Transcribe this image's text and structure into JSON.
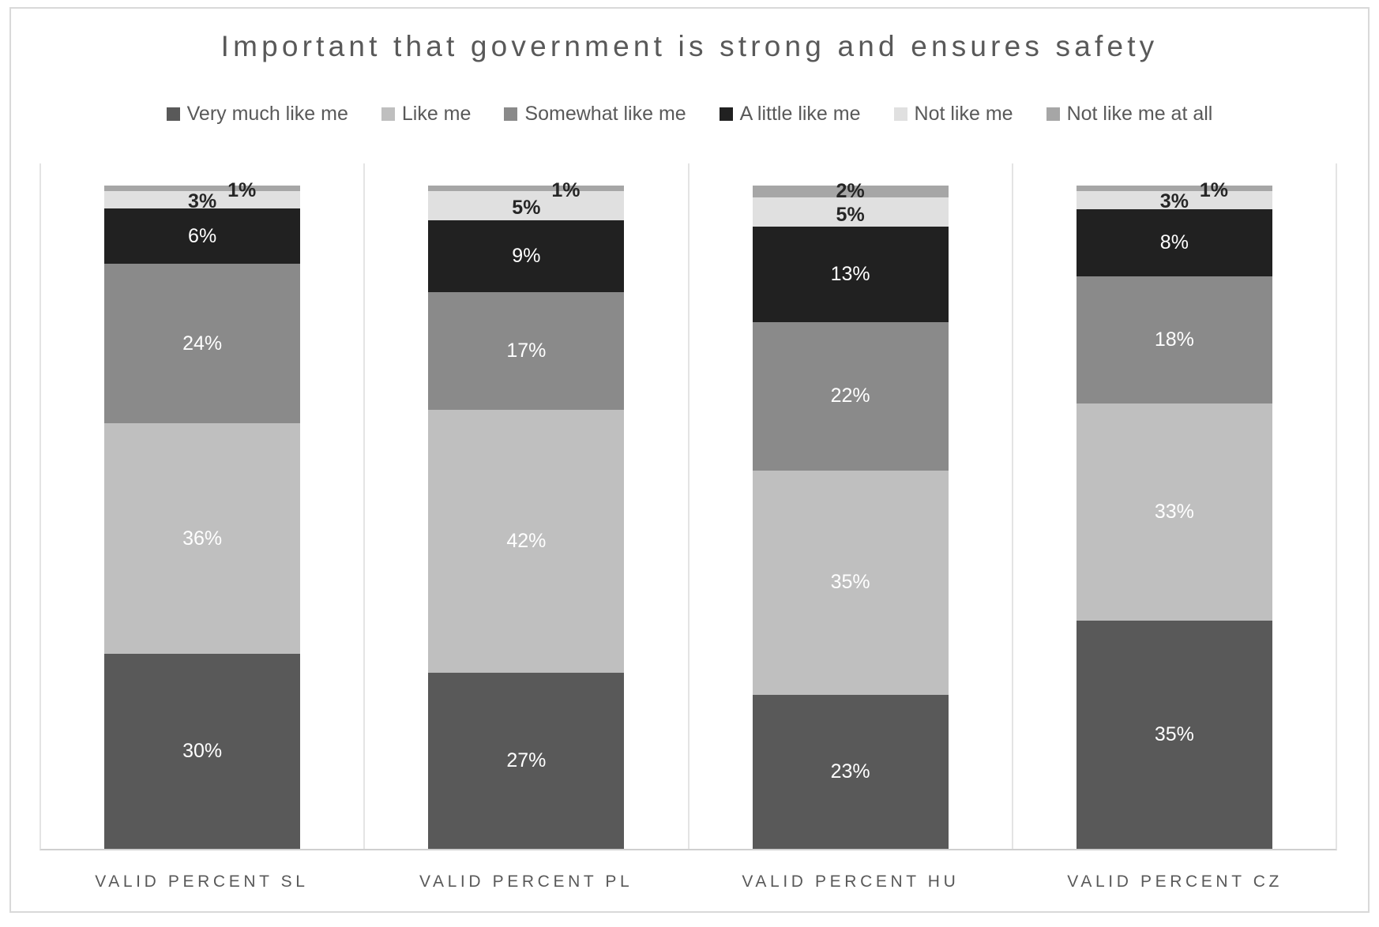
{
  "title": "Important that government is strong and ensures safety",
  "colors": {
    "text": "#595959",
    "frame_border": "#d9d9d9",
    "divider_line": "#e4e4e4",
    "axis_line": "#cfcfcf",
    "small_label_text": "#262626"
  },
  "chart_data": {
    "type": "bar",
    "stacked": true,
    "percent_stacked": true,
    "title": "Important that government is strong and ensures safety",
    "xlabel": "",
    "ylabel": "",
    "ylim": [
      0,
      100
    ],
    "grid": "vertical category dividers only",
    "legend_position": "top",
    "value_label_suffix": "%",
    "categories": [
      "VALID PERCENT SL",
      "VALID PERCENT PL",
      "VALID PERCENT HU",
      "VALID PERCENT CZ"
    ],
    "series": [
      {
        "name": "Very much like me",
        "color": "#595959",
        "label_color": "#ffffff",
        "values": [
          30,
          27,
          23,
          35
        ]
      },
      {
        "name": "Like me",
        "color": "#bfbfbf",
        "label_color": "#ffffff",
        "values": [
          36,
          42,
          35,
          33
        ]
      },
      {
        "name": "Somewhat like me",
        "color": "#8a8a8a",
        "label_color": "#ffffff",
        "values": [
          24,
          17,
          22,
          18
        ]
      },
      {
        "name": "A little like me",
        "color": "#212121",
        "label_color": "#ffffff",
        "values": [
          6,
          9,
          13,
          8
        ]
      },
      {
        "name": "Not like me",
        "color": "#e0e0e0",
        "label_color": "#262626",
        "values": [
          3,
          5,
          5,
          3
        ]
      },
      {
        "name": "Not like me at all",
        "color": "#a6a6a6",
        "label_color": "#262626",
        "values": [
          1,
          1,
          2,
          1
        ]
      }
    ]
  }
}
